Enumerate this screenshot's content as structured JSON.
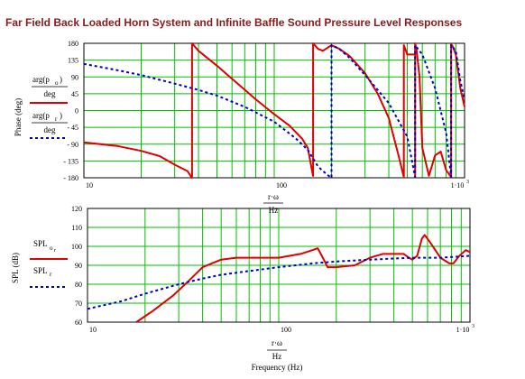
{
  "title": "Far Field Back Loaded Horn System and Infinite Baffle Sound Pressure Level Responses",
  "colors": {
    "horn": "#e00000",
    "baffle": "#0000cc",
    "grid": "#00c000",
    "title": "#8b1a1a"
  },
  "labels": {
    "phase_axis": "Phase (deg)",
    "phase_horn_num": "arg(p",
    "phase_horn_sub": "o",
    "phase_baffle_num": "arg(p",
    "phase_baffle_sub": "r",
    "phase_den": "deg",
    "spl_axis": "SPL (dB)",
    "spl_horn": "SPL",
    "spl_horn_sub": "o",
    "spl_horn_sub2": "r",
    "spl_baffle": "SPL",
    "spl_baffle_sub": "r",
    "xfrac_num": "r·ω",
    "xfrac_den": "Hz",
    "freq_label": "Frequency (Hz)"
  },
  "chart_data": [
    {
      "type": "line",
      "x_scale": "log",
      "xlim": [
        10,
        1000
      ],
      "ylim": [
        -180,
        180
      ],
      "x_ticks": [
        "10",
        "100",
        "1·10"
      ],
      "x_tick_exp": "3",
      "y_ticks": [
        "180",
        "135",
        "90",
        "45",
        "0",
        "- 45",
        "- 90",
        "- 135",
        "- 180"
      ],
      "grid": true,
      "series": [
        {
          "name": "arg(p_o)/deg",
          "color": "#e00000",
          "x": [
            10,
            15,
            20,
            25,
            30,
            35,
            36.9,
            37,
            40,
            50,
            60,
            80,
            100,
            120,
            140,
            150,
            159.9,
            160,
            170,
            180,
            200,
            220,
            250,
            300,
            350,
            400,
            450,
            470,
            479.9,
            480,
            500,
            549.9,
            550,
            560,
            580,
            600,
            650,
            700,
            750,
            800,
            849.9,
            850,
            870,
            900,
            950,
            1000
          ],
          "y": [
            -85,
            -95,
            -108,
            -122,
            -145,
            -162,
            -180,
            180,
            160,
            120,
            85,
            30,
            -10,
            -40,
            -75,
            -100,
            -175,
            180,
            165,
            160,
            175,
            165,
            145,
            100,
            45,
            -20,
            -120,
            -160,
            -178,
            175,
            150,
            -175,
            180,
            160,
            90,
            -100,
            -175,
            -120,
            -110,
            -160,
            -178,
            178,
            170,
            150,
            60,
            10
          ]
        },
        {
          "name": "arg(p_r)/deg",
          "color": "#0000cc",
          "x": [
            10,
            15,
            20,
            30,
            40,
            50,
            70,
            100,
            130,
            150,
            170,
            190,
            199.9,
            200,
            220,
            250,
            300,
            400,
            500,
            549.9,
            550,
            600,
            700,
            800,
            849.9,
            850,
            900,
            950,
            1000
          ],
          "y": [
            125,
            108,
            95,
            72,
            55,
            40,
            10,
            -30,
            -75,
            -105,
            -150,
            -172,
            -180,
            175,
            165,
            140,
            95,
            20,
            -70,
            -178,
            175,
            150,
            60,
            -60,
            -178,
            175,
            160,
            80,
            30
          ]
        }
      ]
    },
    {
      "type": "line",
      "x_scale": "log",
      "xlim": [
        10,
        1000
      ],
      "ylim": [
        60,
        120
      ],
      "x_ticks": [
        "10",
        "100",
        "1·10"
      ],
      "x_tick_exp": "3",
      "y_ticks": [
        "120",
        "110",
        "100",
        "90",
        "80",
        "70",
        "60"
      ],
      "ylabel": "SPL (dB)",
      "xlabel": "Frequency (Hz)",
      "grid": true,
      "series": [
        {
          "name": "SPL_o_r",
          "color": "#e00000",
          "x": [
            18,
            22,
            28,
            34,
            40,
            50,
            60,
            80,
            100,
            130,
            150,
            160,
            170,
            180,
            200,
            250,
            300,
            350,
            400,
            450,
            480,
            500,
            530,
            560,
            580,
            620,
            700,
            780,
            820,
            880,
            950,
            1000
          ],
          "y": [
            60,
            66,
            74,
            82,
            89,
            93,
            94,
            94,
            94,
            96,
            98,
            99,
            94,
            89,
            89,
            90,
            94,
            96,
            96,
            96,
            94,
            93,
            95,
            104,
            106,
            102,
            94,
            91,
            91,
            95,
            98,
            97
          ]
        },
        {
          "name": "SPL_r",
          "color": "#0000cc",
          "x": [
            10,
            15,
            20,
            30,
            40,
            50,
            70,
            100,
            150,
            200,
            300,
            500,
            700,
            1000
          ],
          "y": [
            67,
            71,
            75,
            80,
            83,
            85,
            87,
            89,
            91,
            92,
            93,
            94,
            94,
            95
          ]
        }
      ]
    }
  ]
}
